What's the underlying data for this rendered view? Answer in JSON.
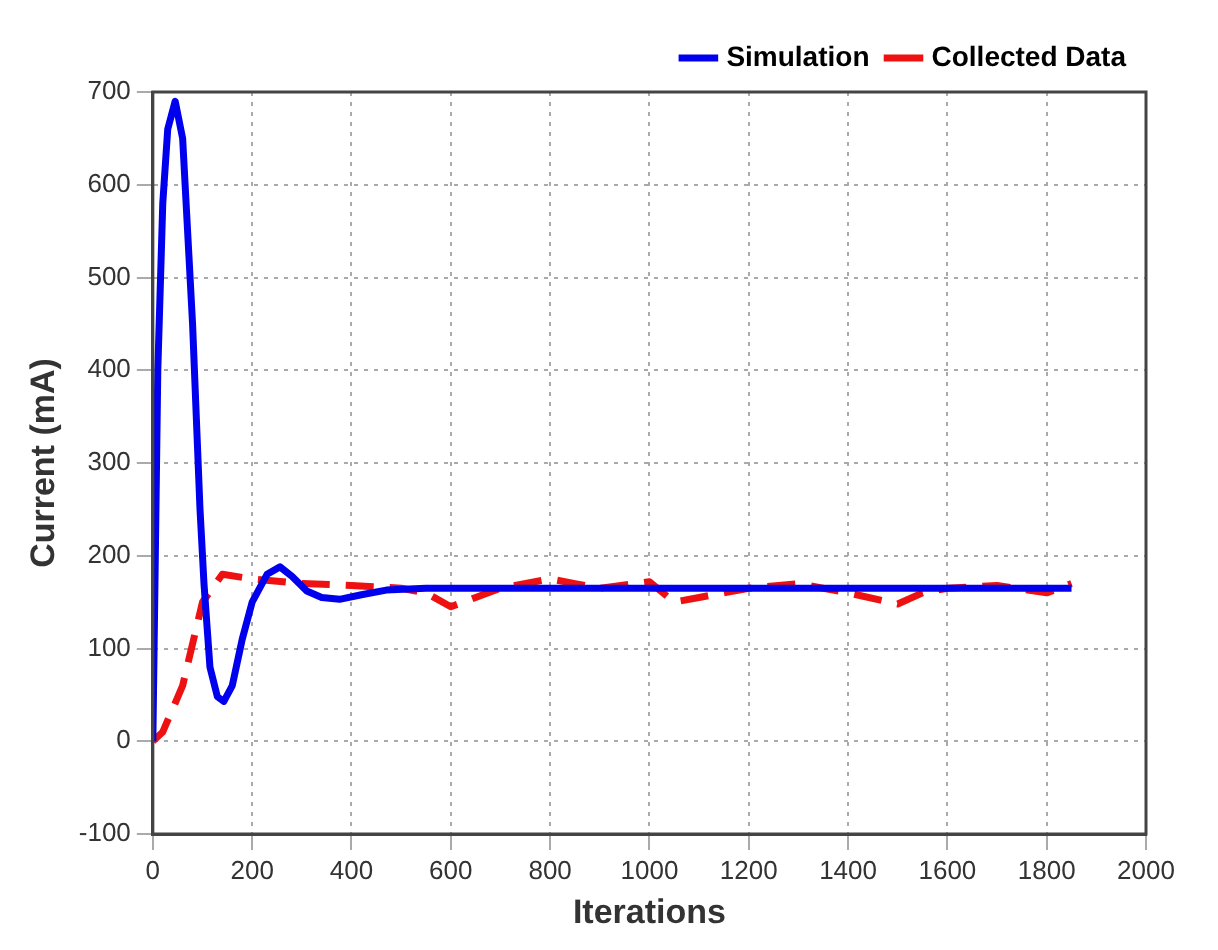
{
  "chart_data": {
    "type": "line",
    "xlabel": "Iterations",
    "ylabel": "Current (mA)",
    "xlim": [
      0,
      2000
    ],
    "xticks": [
      0,
      200,
      400,
      600,
      800,
      1000,
      1200,
      1400,
      1600,
      1800,
      2000
    ],
    "ylim": [
      -100,
      700
    ],
    "yticks": [
      -100,
      0,
      100,
      200,
      300,
      400,
      500,
      600,
      700
    ],
    "grid": true,
    "legend": "top right",
    "marker": "none",
    "series": [
      {
        "name": "Simulation",
        "color": "#0000ee",
        "line_style": "solid",
        "x": [
          0,
          5,
          10,
          20,
          30,
          45,
          60,
          80,
          95,
          103,
          115,
          130,
          143,
          160,
          180,
          200,
          230,
          256,
          280,
          310,
          340,
          376,
          420,
          470,
          550,
          1850
        ],
        "values": [
          0,
          200,
          400,
          580,
          660,
          690,
          650,
          450,
          250,
          170,
          80,
          48,
          43,
          60,
          110,
          150,
          180,
          188,
          178,
          162,
          155,
          153,
          158,
          163,
          165,
          165
        ]
      },
      {
        "name": "Collected Data",
        "color": "#ee1111",
        "line_style": "dashed",
        "x": [
          0,
          20,
          60,
          100,
          140,
          200,
          300,
          400,
          500,
          550,
          600,
          650,
          700,
          800,
          850,
          900,
          1000,
          1050,
          1100,
          1200,
          1300,
          1400,
          1500,
          1550,
          1600,
          1700,
          1800,
          1850
        ],
        "values": [
          0,
          10,
          60,
          150,
          180,
          175,
          170,
          168,
          165,
          160,
          145,
          155,
          165,
          175,
          170,
          165,
          172,
          150,
          155,
          165,
          170,
          160,
          148,
          160,
          165,
          168,
          160,
          170
        ]
      }
    ]
  }
}
